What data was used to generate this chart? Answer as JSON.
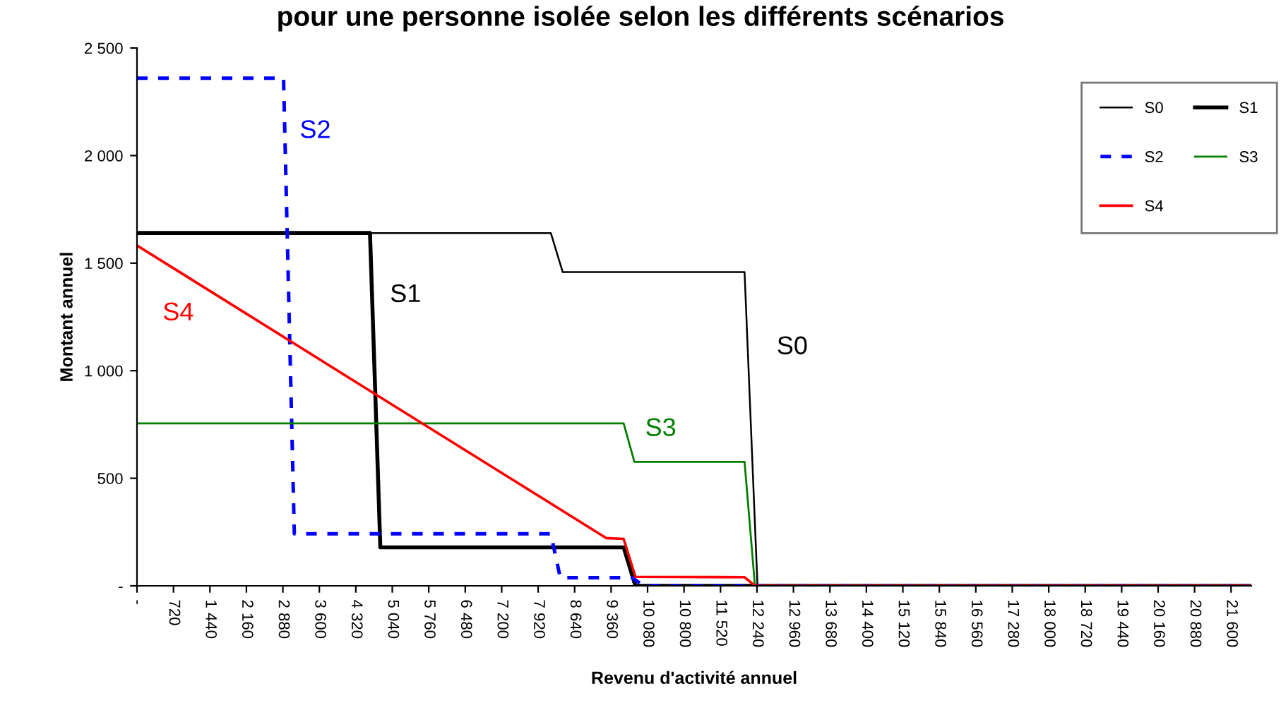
{
  "chart_data": {
    "type": "line",
    "title": "pour une personne isolée selon les différents scénarios",
    "xlabel": "Revenu d'activité annuel",
    "ylabel": "Montant annuel",
    "series": [
      {
        "name": "S0",
        "color": "#000000",
        "x": [
          0,
          8170,
          8405,
          11995,
          12250,
          22000
        ],
        "values": [
          1640,
          1640,
          1458,
          1458,
          0,
          0
        ]
      },
      {
        "name": "S1",
        "color": "#000000",
        "x": [
          0,
          4600,
          4804,
          9608,
          9840,
          22000
        ],
        "values": [
          1640,
          1640,
          179,
          179,
          0,
          0
        ]
      },
      {
        "name": "S2",
        "color": "#0000ff",
        "line_style": "dashed",
        "x": [
          0,
          2893,
          3106,
          8170,
          8357,
          9776,
          10000,
          22000
        ],
        "values": [
          2360,
          2360,
          242,
          242,
          38,
          38,
          0,
          0
        ]
      },
      {
        "name": "S3",
        "color": "#008000",
        "x": [
          0,
          9608,
          9820,
          11995,
          12200,
          22000
        ],
        "values": [
          755,
          755,
          576,
          576,
          0,
          0
        ]
      },
      {
        "name": "S4",
        "color": "#ff0000",
        "x": [
          0,
          4739,
          9262,
          9608,
          9840,
          11995,
          12200,
          22000
        ],
        "values": [
          1582,
          886,
          222,
          218,
          42,
          40,
          0,
          0
        ]
      }
    ],
    "annotations": [
      "S0",
      "S1",
      "S2",
      "S3",
      "S4"
    ],
    "xlim": [
      0,
      22000
    ],
    "ylim": [
      0,
      2500
    ],
    "xticks": [
      {
        "value": 0,
        "label": "-"
      },
      720,
      {
        "value": 1440,
        "label": "1 440"
      },
      {
        "value": 2160,
        "label": "2 160"
      },
      {
        "value": 2880,
        "label": "2 880"
      },
      {
        "value": 3600,
        "label": "3 600"
      },
      {
        "value": 4320,
        "label": "4 320"
      },
      {
        "value": 5040,
        "label": "5 040"
      },
      {
        "value": 5760,
        "label": "5 760"
      },
      {
        "value": 6480,
        "label": "6 480"
      },
      {
        "value": 7200,
        "label": "7 200"
      },
      {
        "value": 7920,
        "label": "7 920"
      },
      {
        "value": 8640,
        "label": "8 640"
      },
      {
        "value": 9360,
        "label": "9 360"
      },
      {
        "value": 10080,
        "label": "10 080"
      },
      {
        "value": 10800,
        "label": "10 800"
      },
      {
        "value": 11520,
        "label": "11 520"
      },
      {
        "value": 12240,
        "label": "12 240"
      },
      {
        "value": 12960,
        "label": "12 960"
      },
      {
        "value": 13680,
        "label": "13 680"
      },
      {
        "value": 14400,
        "label": "14 400"
      },
      {
        "value": 15120,
        "label": "15 120"
      },
      {
        "value": 15840,
        "label": "15 840"
      },
      {
        "value": 16560,
        "label": "16 560"
      },
      {
        "value": 17280,
        "label": "17 280"
      },
      {
        "value": 18000,
        "label": "18 000"
      },
      {
        "value": 18720,
        "label": "18 720"
      },
      {
        "value": 19440,
        "label": "19 440"
      },
      {
        "value": 20160,
        "label": "20 160"
      },
      {
        "value": 20880,
        "label": "20 880"
      },
      {
        "value": 21600,
        "label": "21 600"
      }
    ],
    "yticks": [
      {
        "value": 0,
        "label": "-"
      },
      500,
      {
        "value": 1000,
        "label": "1 000"
      },
      {
        "value": 1500,
        "label": "1 500"
      },
      {
        "value": 2000,
        "label": "2 000"
      },
      {
        "value": 2500,
        "label": "2 500"
      }
    ],
    "legend": "top right",
    "grid": false,
    "marker": "none"
  }
}
